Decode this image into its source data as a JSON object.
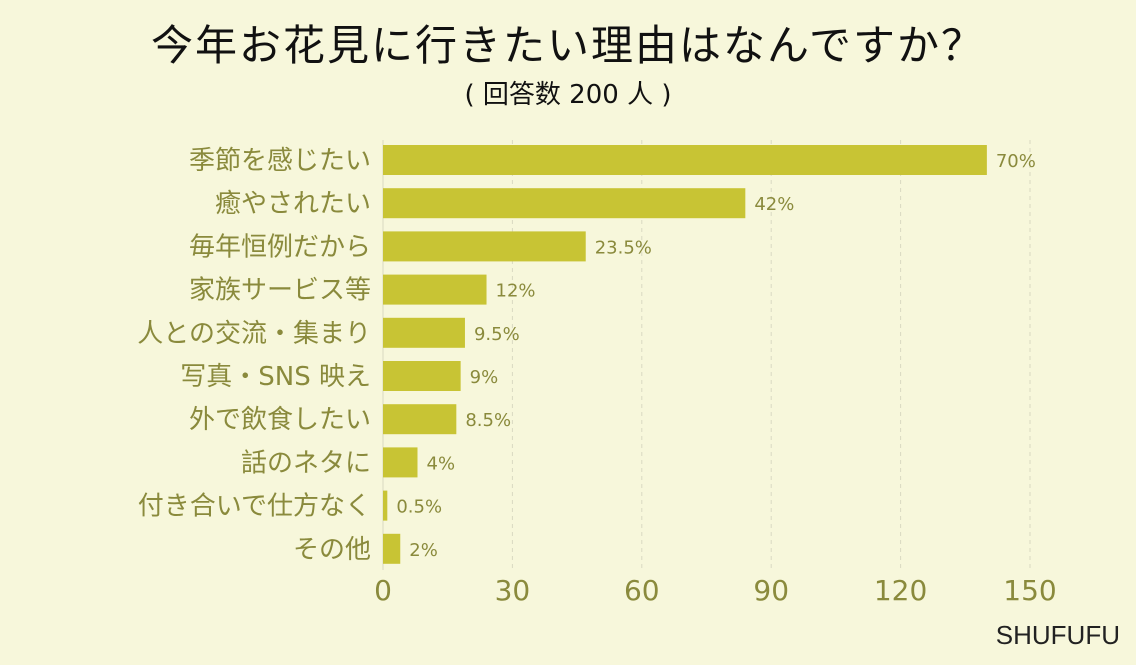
{
  "title": "今年お花見に行きたい理由はなんですか？",
  "subtitle": "( 回答数 200 人 )",
  "source": "SHUFUFU",
  "colors": {
    "background": "#f7f7db",
    "bar": "#c8c434",
    "text": "#8a8a3c",
    "grid": "#d9d9c2"
  },
  "chart_data": {
    "type": "bar",
    "orientation": "horizontal",
    "title": "今年お花見に行きたい理由はなんですか？",
    "subtitle": "( 回答数 200 人 )",
    "xlabel": "",
    "ylabel": "",
    "xlim": [
      0,
      150
    ],
    "xticks": [
      0,
      30,
      60,
      90,
      120,
      150
    ],
    "grid": true,
    "categories": [
      "季節を感じたい",
      "癒やされたい",
      "毎年恒例だから",
      "家族サービス等",
      "人との交流・集まり",
      "写真・SNS 映え",
      "外で飲食したい",
      "話のネタに",
      "付き合いで仕方なく",
      "その他"
    ],
    "values": [
      140,
      84,
      47,
      24,
      19,
      18,
      17,
      8,
      1,
      4
    ],
    "value_labels": [
      "70%",
      "42%",
      "23.5%",
      "12%",
      "9.5%",
      "9%",
      "8.5%",
      "4%",
      "0.5%",
      "2%"
    ]
  }
}
